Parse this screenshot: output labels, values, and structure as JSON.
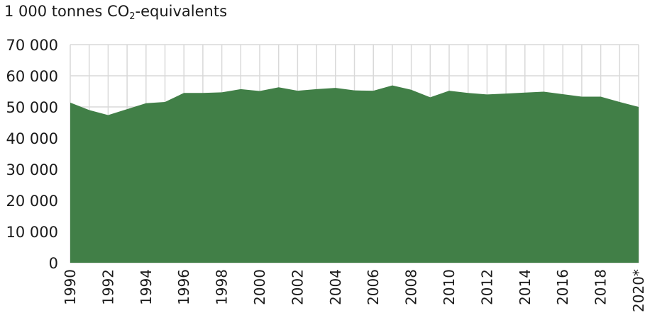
{
  "chart_data": {
    "type": "area",
    "unit_label": {
      "before_sub": "1 000 tonnes CO",
      "sub": "2",
      "after_sub": "-equivalents"
    },
    "area_color": "#417f47",
    "grid_color": "#d9d9d9",
    "grid": true,
    "ylim": [
      0,
      70000
    ],
    "yticks": [
      0,
      10000,
      20000,
      30000,
      40000,
      50000,
      60000,
      70000
    ],
    "ytick_labels": [
      "0",
      "10 000",
      "20 000",
      "30 000",
      "40 000",
      "50 000",
      "60 000",
      "70 000"
    ],
    "x": [
      "1990",
      "1991",
      "1992",
      "1993",
      "1994",
      "1995",
      "1996",
      "1997",
      "1998",
      "1999",
      "2000",
      "2001",
      "2002",
      "2003",
      "2004",
      "2005",
      "2006",
      "2007",
      "2008",
      "2009",
      "2010",
      "2011",
      "2012",
      "2013",
      "2014",
      "2015",
      "2016",
      "2017",
      "2018",
      "2019",
      "2020*"
    ],
    "x_tick_labels": [
      "1990",
      "",
      "1992",
      "",
      "1994",
      "",
      "1996",
      "",
      "1998",
      "",
      "2000",
      "",
      "2002",
      "",
      "2004",
      "",
      "2006",
      "",
      "2008",
      "",
      "2010",
      "",
      "2012",
      "",
      "2014",
      "",
      "2016",
      "",
      "2018",
      "",
      "2020*"
    ],
    "values": [
      51400,
      49000,
      47400,
      49300,
      51200,
      51600,
      54500,
      54500,
      54700,
      55700,
      55100,
      56300,
      55200,
      55700,
      56100,
      55300,
      55200,
      56900,
      55500,
      53100,
      55200,
      54500,
      54000,
      54300,
      54600,
      54900,
      54100,
      53300,
      53300,
      51600,
      50000
    ]
  }
}
